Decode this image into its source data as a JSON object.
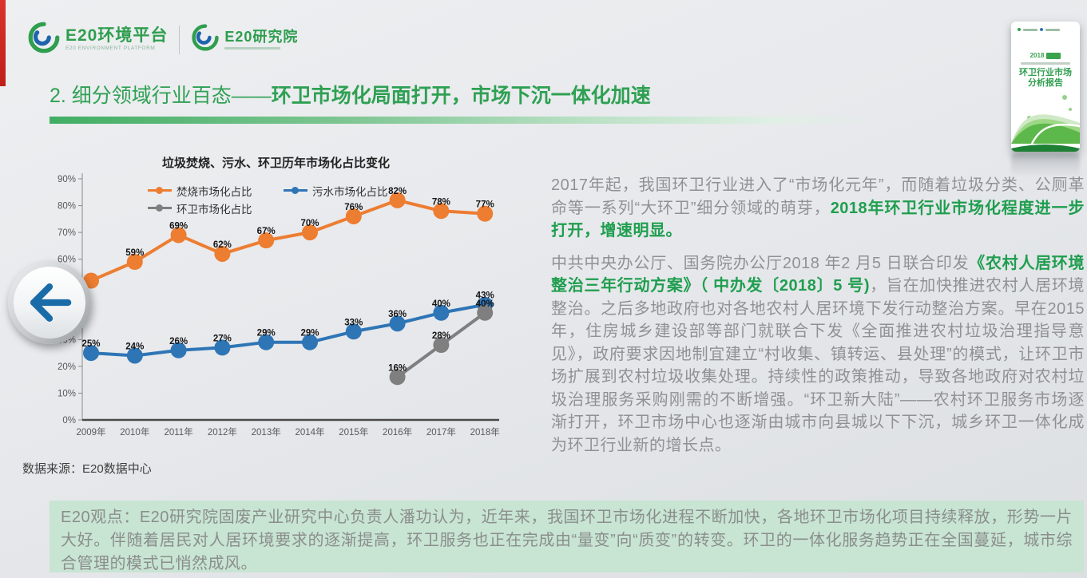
{
  "header": {
    "logo_platform": {
      "name": "E20环境平台",
      "subtitle": "E20 ENVIRONMENT PLATFORM"
    },
    "logo_institute": {
      "name": "E20研究院"
    }
  },
  "slide_title": {
    "prefix": "2. 细分领域行业百态——",
    "emphasis": "环卫市场化局面打开，市场下沉一体化加速"
  },
  "chart_data": {
    "type": "line",
    "title": "垃圾焚烧、污水、环卫历年市场化占比变化",
    "categories": [
      "2009年",
      "2010年",
      "2011年",
      "2012年",
      "2013年",
      "2014年",
      "2015年",
      "2016年",
      "2017年",
      "2018年"
    ],
    "series": [
      {
        "name": "焚烧市场化占比",
        "color": "#ED7D31",
        "values": [
          52,
          59,
          69,
          62,
          67,
          70,
          76,
          82,
          78,
          77
        ],
        "hidden_labels": [
          0
        ]
      },
      {
        "name": "污水市场化占比",
        "color": "#2E75B6",
        "values": [
          25,
          24,
          26,
          27,
          29,
          29,
          33,
          36,
          40,
          43
        ],
        "hidden_labels": []
      },
      {
        "name": "环卫市场化占比",
        "color": "#7F7F7F",
        "values": [
          null,
          null,
          null,
          null,
          null,
          null,
          null,
          16,
          28,
          40
        ],
        "hidden_labels": []
      }
    ],
    "ylim": [
      0,
      90
    ],
    "ytick_step": 10,
    "ytick_format": "percent",
    "grid": false,
    "legend_position": "top-inside"
  },
  "source_note": "数据来源：E20数据中心",
  "article": {
    "p1_runs": [
      {
        "t": "2017年起，我国环卫行业进入了“市场化元年”，而随着垃圾分类、公厕革命等一系列“大环卫”细分领域的萌芽，",
        "s": "normal"
      },
      {
        "t": "2018年环卫行业市场化程度进一步打开，增速明显。",
        "s": "em"
      }
    ],
    "p2_runs": [
      {
        "t": "中共中央办公厅、国务院办公厅2018 年2 月5 日联合印发",
        "s": "normal"
      },
      {
        "t": "《农村人居环境整治三年行动方案》（ 中办发〔2018〕5 号)",
        "s": "em"
      },
      {
        "t": "，旨在加快推进农村人居环境整治。之后多地政府也对各地农村人居环境下发行动整治方案。早在2015 年，住房城乡建设部等部门就联合下发《全面推进农村垃圾治理指导意见》，政府要求因地制宜建立“村收集、镇转运、县处理”的模式，让环卫市场扩展到农村垃圾收集处理。持续性的政策推动，导致各地政府对农村垃圾治理服务采购刚需的不断增强。“环卫新大陆”——农村环卫服务市场逐渐打开，环卫市场中心也逐渐由城市向县城以下下沉，城乡环卫一体化成为环卫行业新的增长点。",
        "s": "normal"
      }
    ]
  },
  "viewpoint": {
    "text": "E20观点：E20研究院固废产业研究中心负责人潘功认为，近年来，我国环卫市场化进程不断加快，各地环卫市场化项目持续释放，形势一片大好。伴随着居民对人居环境要求的逐渐提高，环卫服务也正在完成由“量变”向“质变”的转变。环卫的一体化服务趋势正在全国蔓延，城市综合管理的模式已悄然成风。"
  },
  "cover": {
    "year": "2018",
    "title_line1": "环卫行业市场",
    "title_line2": "分析报告"
  },
  "icons": {
    "back_arrow": "left-arrow",
    "logo_swirl": "e20-swirl"
  },
  "colors": {
    "accent_green": "#2f9e4e",
    "series_orange": "#ED7D31",
    "series_blue": "#2E75B6",
    "series_gray": "#7F7F7F",
    "viewpoint_bg": "#c8e4d3",
    "red_strip": "#cf2822"
  }
}
